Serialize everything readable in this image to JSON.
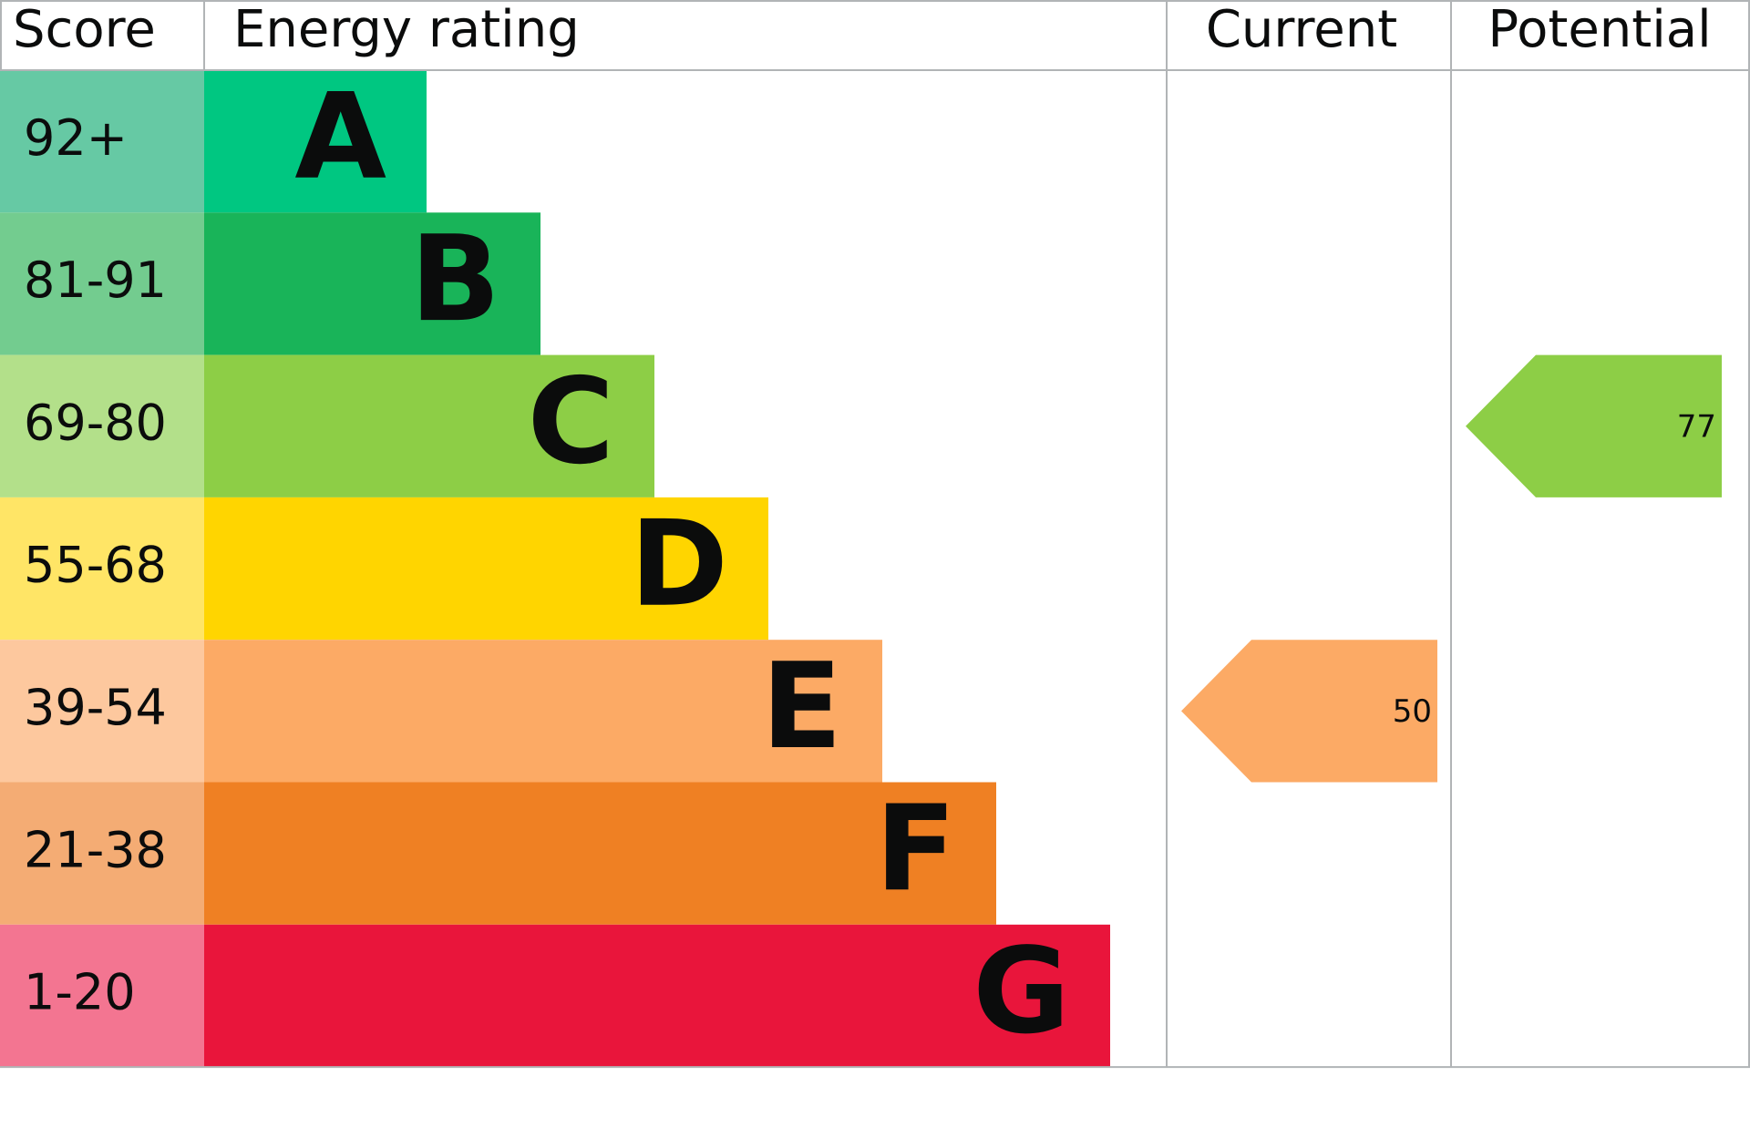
{
  "header": {
    "score": "Score",
    "energy_rating": "Energy rating",
    "current": "Current",
    "potential": "Potential"
  },
  "bands": [
    {
      "score": "92+",
      "letter": "A",
      "color": "#00c781",
      "score_color": "#66c9a4"
    },
    {
      "score": "81-91",
      "letter": "B",
      "color": "#19b459",
      "score_color": "#73cc8f"
    },
    {
      "score": "69-80",
      "letter": "C",
      "color": "#8dce46",
      "score_color": "#b3e08a"
    },
    {
      "score": "55-68",
      "letter": "D",
      "color": "#ffd500",
      "score_color": "#ffe566"
    },
    {
      "score": "39-54",
      "letter": "E",
      "color": "#fcaa65",
      "score_color": "#fdc89e"
    },
    {
      "score": "21-38",
      "letter": "F",
      "color": "#ef8023",
      "score_color": "#f4ac74"
    },
    {
      "score": "1-20",
      "letter": "G",
      "color": "#e9153b",
      "score_color": "#f37591"
    }
  ],
  "current": {
    "value": 50
  },
  "potential": {
    "value": 77
  }
}
